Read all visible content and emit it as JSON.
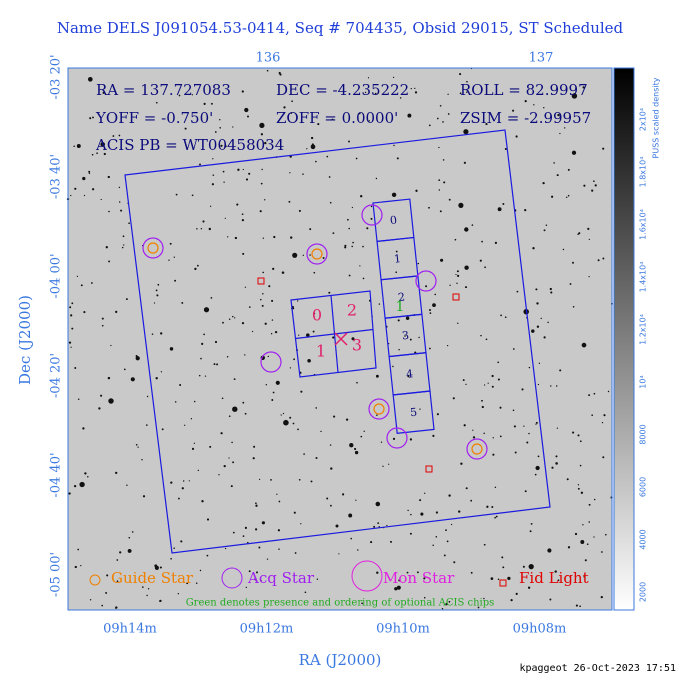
{
  "header": {
    "title": "Name DELS J091054.53-0414, Seq # 704435, Obsid 29015, ST Scheduled"
  },
  "top_axis": {
    "ticks": [
      "136",
      "137"
    ]
  },
  "left_axis": {
    "label": "Dec (J2000)",
    "ticks": [
      "-03 20'",
      "-03 40'",
      "-04 00'",
      "-04 20'",
      "-04 40'",
      "-05 00'"
    ]
  },
  "bottom_axis": {
    "label": "RA (J2000)",
    "ticks": [
      "09h14m",
      "09h12m",
      "09h10m",
      "09h08m"
    ]
  },
  "info": {
    "ra": "RA = 137.727083",
    "dec": "DEC = -4.235222",
    "roll": "ROLL = 82.9997",
    "yoff": "YOFF = -0.750'",
    "zoff": "ZOFF = 0.0000'",
    "zsim": "ZSIM = -2.99957",
    "acis_pb": "ACIS PB = WT00458034"
  },
  "acis_i": [
    "0",
    "2",
    "1",
    "3"
  ],
  "acis_s": [
    "0",
    "1",
    "2",
    "3",
    "4",
    "5"
  ],
  "optional_chip": "1",
  "legend": {
    "guide": "Guide Star",
    "acq": "Acq Star",
    "mon": "Mon Star",
    "fid": "Fid Light"
  },
  "note": "Green denotes presence and ordering of optional ACIS chips",
  "colorbar": {
    "title": "PUSS scaled density",
    "ticks": [
      "2000",
      "4000",
      "6000",
      "8000",
      "10⁴",
      "1.2x10⁴",
      "1.4x10⁴",
      "1.6x10⁴",
      "1.8x10⁴",
      "2x10⁴"
    ]
  },
  "footer": "kpaggeot 26-Oct-2023 17:51"
}
